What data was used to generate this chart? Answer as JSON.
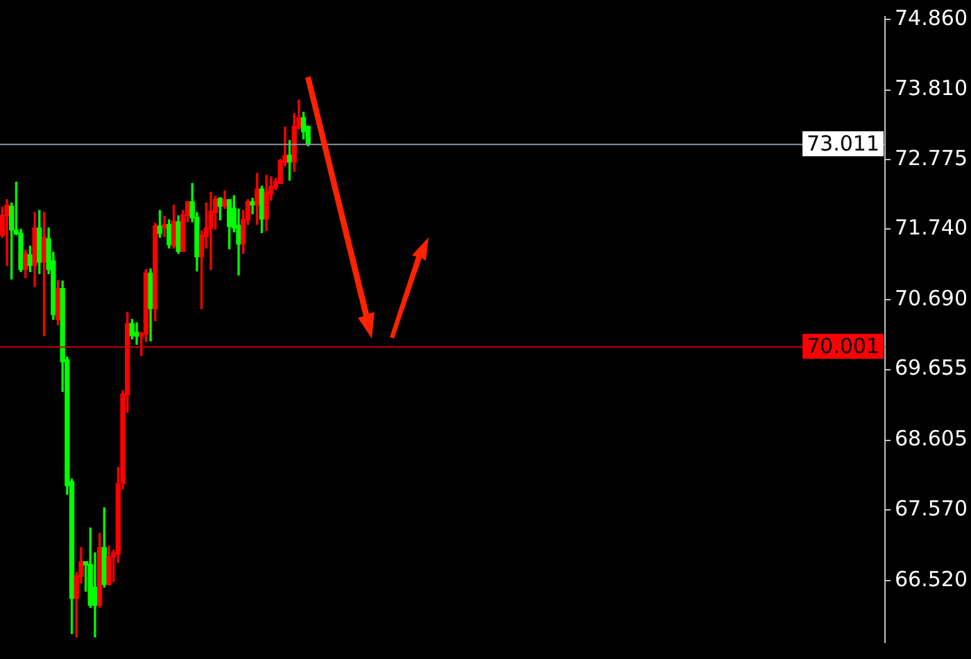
{
  "chart_data": {
    "type": "candlestick",
    "categories": [
      null,
      null,
      null,
      null,
      null,
      null,
      null,
      null,
      null,
      null,
      null,
      null,
      null,
      null,
      null,
      null,
      null,
      null,
      null,
      null,
      null,
      null,
      null,
      null,
      null,
      null,
      null,
      null,
      null,
      null,
      null,
      null,
      null,
      null,
      null,
      null,
      null,
      null,
      null,
      null,
      null,
      null,
      null,
      null,
      null,
      null,
      null,
      null,
      null,
      null,
      null,
      null,
      null,
      null,
      null,
      null,
      null,
      null,
      null,
      null,
      null,
      null,
      null,
      null,
      null,
      null,
      null,
      null,
      null,
      null,
      null,
      null,
      null,
      null,
      null,
      null,
      null,
      null,
      null,
      null,
      null,
      null,
      null,
      null,
      null,
      null,
      null,
      null,
      null,
      null,
      null,
      null,
      null,
      null,
      null,
      null,
      null,
      null,
      null,
      null,
      null,
      null,
      null,
      null,
      null,
      null,
      null,
      null,
      null,
      null,
      null,
      null,
      null,
      null,
      null,
      null,
      null,
      null,
      null,
      null,
      null,
      null,
      null,
      null,
      null,
      null,
      null,
      null,
      null,
      null,
      null,
      null,
      null,
      null,
      null,
      null,
      null,
      null,
      null,
      null,
      null,
      null,
      null,
      null,
      null,
      null,
      null,
      null,
      null,
      null,
      null,
      null,
      null,
      null,
      null,
      null,
      null,
      null,
      null,
      null,
      null,
      null,
      null,
      null,
      null,
      null,
      null,
      null,
      null,
      null,
      null,
      null,
      null,
      null,
      null,
      null,
      null,
      null,
      null,
      null,
      null,
      null,
      null,
      null,
      null,
      null,
      null,
      null,
      null,
      null,
      null
    ],
    "ohlc": [
      [
        71.65,
        72.07,
        71.62,
        71.95
      ],
      [
        71.94,
        72.18,
        71.2,
        72.1
      ],
      [
        72.08,
        72.13,
        71.0,
        71.73
      ],
      [
        71.73,
        72.44,
        71.66,
        71.67
      ],
      [
        71.68,
        71.74,
        71.11,
        71.14
      ],
      [
        71.14,
        71.43,
        71.02,
        71.38
      ],
      [
        71.36,
        71.49,
        71.11,
        71.2
      ],
      [
        71.2,
        71.99,
        70.89,
        71.76
      ],
      [
        71.76,
        72.02,
        71.08,
        71.25
      ],
      [
        71.25,
        71.99,
        70.16,
        71.62
      ],
      [
        71.6,
        71.76,
        71.08,
        71.14
      ],
      [
        71.27,
        71.4,
        70.4,
        70.47
      ],
      [
        70.4,
        70.98,
        70.32,
        70.86
      ],
      [
        70.86,
        70.97,
        69.33,
        69.77
      ],
      [
        69.8,
        69.84,
        67.8,
        67.93
      ],
      [
        67.99,
        68.03,
        65.73,
        66.25
      ],
      [
        66.25,
        66.64,
        65.68,
        66.59
      ],
      [
        66.58,
        67.01,
        66.48,
        66.8
      ],
      [
        66.8,
        66.8,
        66.36,
        66.75
      ],
      [
        66.76,
        67.3,
        66.12,
        66.15
      ],
      [
        66.42,
        66.93,
        65.68,
        66.15
      ],
      [
        66.15,
        67.22,
        66.12,
        67.01
      ],
      [
        67.01,
        67.6,
        66.42,
        66.46
      ],
      [
        66.46,
        67.03,
        66.45,
        66.87
      ],
      [
        66.87,
        66.97,
        66.5,
        66.93
      ],
      [
        66.91,
        68.2,
        66.79,
        67.96
      ],
      [
        67.96,
        69.34,
        67.88,
        69.29
      ],
      [
        69.28,
        70.5,
        69.02,
        70.34
      ],
      [
        70.34,
        70.4,
        70.11,
        70.16
      ],
      [
        70.21,
        70.35,
        70.03,
        70.15
      ],
      [
        70.15,
        70.21,
        69.86,
        70.19
      ],
      [
        70.18,
        71.14,
        70.07,
        71.09
      ],
      [
        71.09,
        71.15,
        70.08,
        70.56
      ],
      [
        70.56,
        71.83,
        70.38,
        71.79
      ],
      [
        71.79,
        72.02,
        71.62,
        71.68
      ],
      [
        71.76,
        71.93,
        71.63,
        71.81
      ],
      [
        71.81,
        71.88,
        71.46,
        71.51
      ],
      [
        71.49,
        72.1,
        71.46,
        71.86
      ],
      [
        71.85,
        71.94,
        71.38,
        71.41
      ],
      [
        71.41,
        72.02,
        71.41,
        71.96
      ],
      [
        71.94,
        72.15,
        71.85,
        72.15
      ],
      [
        72.15,
        72.42,
        71.85,
        71.91
      ],
      [
        71.92,
        71.99,
        71.12,
        71.33
      ],
      [
        71.33,
        71.72,
        70.56,
        71.65
      ],
      [
        71.63,
        72.13,
        71.46,
        71.76
      ],
      [
        71.75,
        72.29,
        71.14,
        72.01
      ],
      [
        71.99,
        72.23,
        71.74,
        72.19
      ],
      [
        72.2,
        72.21,
        71.88,
        72.08
      ],
      [
        72.08,
        72.31,
        72.05,
        72.18
      ],
      [
        72.18,
        72.18,
        71.45,
        71.78
      ],
      [
        72.05,
        72.24,
        71.7,
        71.76
      ],
      [
        71.8,
        72.04,
        71.06,
        71.52
      ],
      [
        71.52,
        72.02,
        71.38,
        71.89
      ],
      [
        71.88,
        72.18,
        71.81,
        72.15
      ],
      [
        72.15,
        72.2,
        71.97,
        72.1
      ],
      [
        72.1,
        72.57,
        71.81,
        72.34
      ],
      [
        72.34,
        72.38,
        71.69,
        71.89
      ],
      [
        71.89,
        72.54,
        71.72,
        72.3
      ],
      [
        72.26,
        72.52,
        72.17,
        72.38
      ],
      [
        72.36,
        72.5,
        72.33,
        72.45
      ],
      [
        72.42,
        72.78,
        72.42,
        72.76
      ],
      [
        72.73,
        73.26,
        72.68,
        72.84
      ],
      [
        72.84,
        73.06,
        72.47,
        72.74
      ],
      [
        72.74,
        73.46,
        72.6,
        73.27
      ],
      [
        73.25,
        73.66,
        73.23,
        73.4
      ],
      [
        73.4,
        73.48,
        73.08,
        73.19
      ],
      [
        73.27,
        73.27,
        72.98,
        73.01
      ],
      null,
      null,
      null,
      null,
      null,
      null,
      null,
      null,
      null,
      null,
      null,
      null,
      null,
      null,
      null,
      null,
      null,
      null,
      null,
      null,
      null,
      null,
      null,
      null,
      null,
      null,
      null,
      null,
      null,
      null,
      null,
      null,
      null,
      null,
      null,
      null,
      null,
      null,
      null,
      null,
      null,
      null,
      null,
      null,
      null,
      null,
      null,
      null,
      null,
      null,
      null,
      null,
      null,
      null,
      null,
      null,
      null,
      null,
      null,
      null,
      null,
      null,
      null,
      null,
      null,
      null,
      null,
      null,
      null,
      null,
      null,
      null,
      null,
      null,
      null,
      null,
      null,
      null,
      null,
      null,
      null,
      null,
      null,
      null,
      null,
      null,
      null,
      null,
      null,
      null,
      null,
      null,
      null,
      null,
      null,
      null,
      null,
      null,
      null,
      null,
      null,
      null,
      null,
      null,
      null,
      null,
      null,
      null,
      null,
      null,
      null,
      null,
      null,
      null,
      null,
      null,
      null,
      null,
      null,
      null,
      null,
      null,
      null,
      null
    ],
    "colors": [
      "#ff0000",
      "#ff0000",
      "#00ff00",
      "#00ff00",
      "#00ff00",
      "#ff0000",
      "#00ff00",
      "#ff0000",
      "#00ff00",
      "#ff0000",
      "#00ff00",
      "#00ff00",
      "#ff0000",
      "#00ff00",
      "#00ff00",
      "#00ff00",
      "#ff0000",
      "#ff0000",
      "#00ff00",
      "#00ff00",
      "#00ff00",
      "#ff0000",
      "#00ff00",
      "#ff0000",
      "#ff0000",
      "#ff0000",
      "#ff0000",
      "#ff0000",
      "#00ff00",
      "#00ff00",
      "#ff0000",
      "#ff0000",
      "#00ff00",
      "#ff0000",
      "#00ff00",
      "#ff0000",
      "#00ff00",
      "#ff0000",
      "#00ff00",
      "#ff0000",
      "#ff0000",
      "#00ff00",
      "#00ff00",
      "#ff0000",
      "#ff0000",
      "#ff0000",
      "#ff0000",
      "#00ff00",
      "#ff0000",
      "#00ff00",
      "#00ff00",
      "#00ff00",
      "#ff0000",
      "#ff0000",
      "#00ff00",
      "#ff0000",
      "#00ff00",
      "#ff0000",
      "#ff0000",
      "#ff0000",
      "#ff0000",
      "#ff0000",
      "#00ff00",
      "#ff0000",
      "#ff0000",
      "#00ff00",
      "#00ff00",
      null,
      null,
      null,
      null,
      null,
      null,
      null,
      null,
      null,
      null,
      null,
      null,
      null,
      null,
      null,
      null,
      null,
      null,
      null,
      null,
      null,
      null,
      null,
      null,
      null,
      null,
      null,
      null,
      null,
      null,
      null,
      null,
      null,
      null,
      null,
      null,
      null,
      null,
      null,
      null,
      null,
      null,
      null,
      null,
      null,
      null,
      null,
      null,
      null,
      null,
      null,
      null,
      null,
      null,
      null,
      null,
      null,
      null,
      null,
      null,
      null,
      null,
      null,
      null,
      null,
      null,
      null,
      null,
      null,
      null,
      null,
      null,
      null,
      null,
      null,
      null,
      null,
      null,
      null,
      null,
      null,
      null,
      null,
      null,
      null,
      null,
      null,
      null,
      null,
      null,
      null,
      null,
      null,
      null,
      null,
      null,
      null,
      null,
      null,
      null,
      null,
      null,
      null,
      null,
      null,
      null,
      null,
      null,
      null,
      null,
      null,
      null,
      null,
      null,
      null,
      null,
      null,
      null,
      null,
      null,
      null,
      null,
      null,
      null
    ],
    "ylim": [
      65.6,
      74.9
    ],
    "yticks": [
      {
        "value": 66.52,
        "label": "66.520"
      },
      {
        "value": 67.57,
        "label": "67.570"
      },
      68.605,
      69.655,
      {
        "value": 70.69,
        "label": "70.690"
      },
      {
        "value": 71.74,
        "label": "71.740"
      },
      72.775,
      {
        "value": 73.81,
        "label": "73.810"
      },
      {
        "value": 74.86,
        "label": "74.860"
      }
    ],
    "ref_lines": [
      {
        "axis": "y",
        "value": 73.011,
        "label": "73.011",
        "color": "#8c96a0"
      },
      {
        "axis": "y",
        "value": 70.001,
        "label": "70.001",
        "color": "#c80000"
      }
    ],
    "grid": false,
    "legend": false,
    "tick_labels": "y"
  }
}
